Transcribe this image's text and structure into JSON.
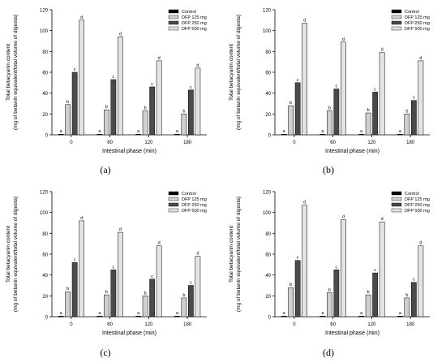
{
  "chart_data": [
    {
      "panel_label": "(a)",
      "type": "bar",
      "title": "",
      "xlabel": "Intestinal phase (min)",
      "ylabel": "Total betacyanin content",
      "ylabel2": "(mg of betanin equivalent/total volume of digesta)",
      "categories": [
        "0",
        "60",
        "120",
        "180"
      ],
      "ylim": [
        0,
        120
      ],
      "yticks": [
        "0",
        "20",
        "40",
        "60",
        "80",
        "100",
        "120"
      ],
      "legend_position": "top-right",
      "series": [
        {
          "name": "Control",
          "color": "#000000",
          "values": [
            0.5,
            0.5,
            0.5,
            0.5
          ],
          "letters": [
            "a",
            "a",
            "a",
            "a"
          ]
        },
        {
          "name": "DFP 125 mg",
          "color": "#cfcfcf",
          "values": [
            29,
            24,
            23,
            20
          ],
          "letters": [
            "b",
            "b",
            "b",
            "b"
          ]
        },
        {
          "name": "DFP 250 mg",
          "color": "#4a4a4a",
          "values": [
            60,
            53,
            46,
            43
          ],
          "letters": [
            "c",
            "c",
            "c",
            "c"
          ]
        },
        {
          "name": "DFP 500 mg",
          "color": "#e3e3e3",
          "values": [
            110,
            94,
            71,
            64
          ],
          "letters": [
            "d",
            "d",
            "d",
            "d"
          ]
        }
      ]
    },
    {
      "panel_label": "(b)",
      "type": "bar",
      "title": "",
      "xlabel": "Intestinal phase (min)",
      "ylabel": "Total betacyanin content",
      "ylabel2": "(mg of betanin equivalent/total volume of digesta)",
      "categories": [
        "0",
        "60",
        "120",
        "180"
      ],
      "ylim": [
        0,
        120
      ],
      "yticks": [
        "0",
        "20",
        "40",
        "60",
        "80",
        "100",
        "120"
      ],
      "legend_position": "top-right",
      "series": [
        {
          "name": "Control",
          "color": "#000000",
          "values": [
            0.5,
            0.5,
            0.5,
            0.5
          ],
          "letters": [
            "a",
            "a",
            "a",
            "a"
          ]
        },
        {
          "name": "DFP 125 mg",
          "color": "#cfcfcf",
          "values": [
            28,
            23,
            21,
            20
          ],
          "letters": [
            "b",
            "b",
            "b",
            "b"
          ]
        },
        {
          "name": "DFP 250 mg",
          "color": "#4a4a4a",
          "values": [
            50,
            44,
            41,
            33
          ],
          "letters": [
            "c",
            "c",
            "c",
            "c"
          ]
        },
        {
          "name": "DFP 500 mg",
          "color": "#e3e3e3",
          "values": [
            107,
            89,
            79,
            71
          ],
          "letters": [
            "d",
            "d",
            "d",
            "d"
          ]
        }
      ]
    },
    {
      "panel_label": "(c)",
      "type": "bar",
      "title": "",
      "xlabel": "Intestinal phase (min)",
      "ylabel": "Total betacyanin content",
      "ylabel2": "(mg of betanin equivalent/total volume of digesta)",
      "categories": [
        "0",
        "60",
        "120",
        "180"
      ],
      "ylim": [
        0,
        120
      ],
      "yticks": [
        "0",
        "20",
        "40",
        "60",
        "80",
        "100",
        "120"
      ],
      "legend_position": "top-right",
      "series": [
        {
          "name": "Control",
          "color": "#000000",
          "values": [
            0.5,
            0.5,
            0.5,
            0.5
          ],
          "letters": [
            "a",
            "a",
            "a",
            "a"
          ]
        },
        {
          "name": "DFP 125 mg",
          "color": "#cfcfcf",
          "values": [
            24,
            21,
            20,
            18
          ],
          "letters": [
            "b",
            "b",
            "b",
            "b"
          ]
        },
        {
          "name": "DFP 250 mg",
          "color": "#4a4a4a",
          "values": [
            52,
            45,
            36,
            30
          ],
          "letters": [
            "c",
            "c",
            "c",
            "c"
          ]
        },
        {
          "name": "DFP 500 mg",
          "color": "#e3e3e3",
          "values": [
            92,
            81,
            68,
            58
          ],
          "letters": [
            "d",
            "d",
            "d",
            "d"
          ]
        }
      ]
    },
    {
      "panel_label": "(d)",
      "type": "bar",
      "title": "",
      "xlabel": "Intestinal phase (min)",
      "ylabel": "Total betacyanin content",
      "ylabel2": "(mg of betanin equivalent/total volume of digesta)",
      "categories": [
        "0",
        "60",
        "120",
        "180"
      ],
      "ylim": [
        0,
        120
      ],
      "yticks": [
        "0",
        "20",
        "40",
        "60",
        "80",
        "100",
        "120"
      ],
      "legend_position": "top-right",
      "series": [
        {
          "name": "Control",
          "color": "#000000",
          "values": [
            0.5,
            0.5,
            0.5,
            0.5
          ],
          "letters": [
            "a",
            "a",
            "a",
            "a"
          ]
        },
        {
          "name": "DFP 125 mg",
          "color": "#cfcfcf",
          "values": [
            28,
            23,
            21,
            18
          ],
          "letters": [
            "b",
            "b",
            "b",
            "b"
          ]
        },
        {
          "name": "DFP 250 mg",
          "color": "#4a4a4a",
          "values": [
            54,
            45,
            42,
            33
          ],
          "letters": [
            "c",
            "c",
            "c",
            "c"
          ]
        },
        {
          "name": "DFP 500 mg",
          "color": "#e3e3e3",
          "values": [
            107,
            93,
            91,
            68
          ],
          "letters": [
            "d",
            "d",
            "d",
            "d"
          ]
        }
      ]
    }
  ]
}
